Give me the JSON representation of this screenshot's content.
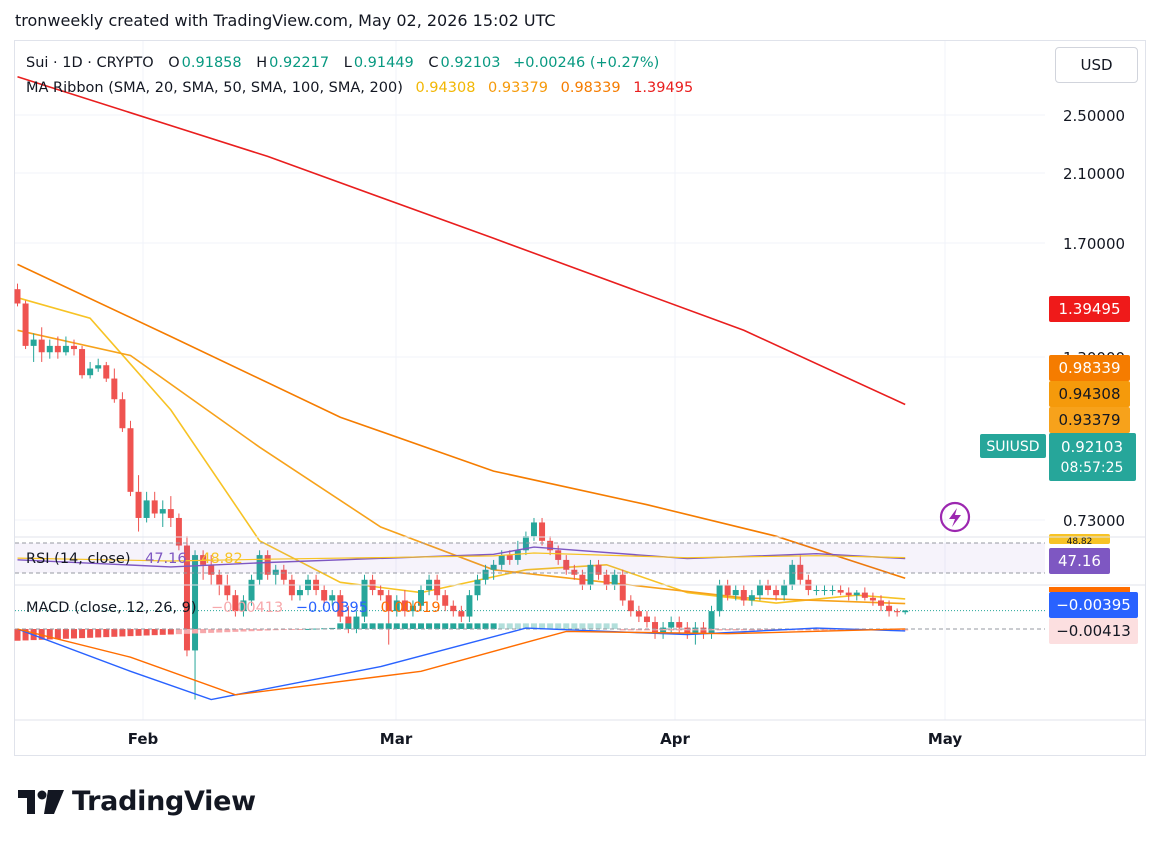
{
  "header": {
    "title": "tronweekly created with TradingView.com, May 02, 2026 15:02 UTC"
  },
  "currency_button": "USD",
  "symbol_legend": {
    "name": "Sui · 1D · CRYPTO",
    "o_label": "O",
    "o": "0.91858",
    "h_label": "H",
    "h": "0.92217",
    "l_label": "L",
    "l": "0.91449",
    "c_label": "C",
    "c": "0.92103",
    "change": "+0.00246 (+0.27%)"
  },
  "ma_legend": {
    "name": "MA Ribbon (SMA, 20, SMA, 50, SMA, 100, SMA, 200)",
    "v20": "0.94308",
    "v50": "0.93379",
    "v100": "0.98339",
    "v200": "1.39495"
  },
  "rsi_legend": {
    "name": "RSI (14, close)",
    "rsi": "47.16",
    "ma": "48.82"
  },
  "macd_legend": {
    "name": "MACD (close, 12, 26, 9)",
    "hist": "−0.00413",
    "macd": "−0.00395",
    "signal": "0.00019"
  },
  "axis_labels": {
    "price_ticks": [
      "2.50000",
      "2.10000",
      "1.70000",
      "1.30000",
      "0.73000"
    ],
    "ma200_tag": "1.39495",
    "ma100_tag": "0.98339",
    "ma20_tag": "0.94308",
    "ma50_tag": "0.93379",
    "symbol_tag": "SUIUSD",
    "price_tag": "0.92103",
    "countdown_tag": "08:57:25",
    "rsi_tag": "47.16",
    "rsi_hidden_tag": "48.82",
    "macd_tag": "−0.00395",
    "hist_tag": "−0.00413",
    "x_ticks": [
      "Feb",
      "Mar",
      "Apr",
      "May"
    ]
  },
  "brand": {
    "name": "TradingView"
  },
  "colors": {
    "up": "#26a69a",
    "down": "#ef5350",
    "ma20": "#f7c325",
    "ma50": "#f7a21b",
    "ma100": "#f57c00",
    "ma200": "#e91e1e",
    "rsi": "#7e57c2",
    "macd": "#2962ff",
    "signal": "#ff6d00"
  },
  "chart_data": {
    "type": "candlestick",
    "symbol": "SUIUSD",
    "interval": "1D",
    "price_scale": "log",
    "price_range": [
      0.7,
      2.7
    ],
    "x_range": [
      "2026-01-01",
      "2026-05-02"
    ],
    "candles": [
      [
        "2026-01-01",
        1.76,
        1.78,
        1.7,
        1.71
      ],
      [
        "2026-01-02",
        1.71,
        1.72,
        1.56,
        1.57
      ],
      [
        "2026-01-03",
        1.57,
        1.61,
        1.52,
        1.59
      ],
      [
        "2026-01-04",
        1.59,
        1.63,
        1.52,
        1.55
      ],
      [
        "2026-01-05",
        1.55,
        1.59,
        1.53,
        1.57
      ],
      [
        "2026-01-06",
        1.57,
        1.6,
        1.53,
        1.55
      ],
      [
        "2026-01-07",
        1.55,
        1.6,
        1.54,
        1.57
      ],
      [
        "2026-01-08",
        1.57,
        1.59,
        1.54,
        1.56
      ],
      [
        "2026-01-09",
        1.56,
        1.57,
        1.47,
        1.48
      ],
      [
        "2026-01-10",
        1.48,
        1.52,
        1.47,
        1.5
      ],
      [
        "2026-01-11",
        1.5,
        1.53,
        1.49,
        1.51
      ],
      [
        "2026-01-12",
        1.51,
        1.52,
        1.46,
        1.47
      ],
      [
        "2026-01-13",
        1.47,
        1.5,
        1.4,
        1.41
      ],
      [
        "2026-01-14",
        1.41,
        1.43,
        1.32,
        1.33
      ],
      [
        "2026-01-15",
        1.33,
        1.35,
        1.16,
        1.17
      ],
      [
        "2026-01-16",
        1.17,
        1.21,
        1.08,
        1.11
      ],
      [
        "2026-01-17",
        1.11,
        1.17,
        1.1,
        1.15
      ],
      [
        "2026-01-18",
        1.15,
        1.17,
        1.11,
        1.12
      ],
      [
        "2026-01-19",
        1.12,
        1.15,
        1.09,
        1.13
      ],
      [
        "2026-01-20",
        1.13,
        1.16,
        1.09,
        1.11
      ],
      [
        "2026-01-21",
        1.11,
        1.12,
        1.04,
        1.05
      ],
      [
        "2026-01-22",
        1.05,
        1.07,
        0.84,
        0.85
      ],
      [
        "2026-01-23",
        0.85,
        1.04,
        0.77,
        1.03
      ],
      [
        "2026-01-24",
        1.03,
        1.04,
        0.98,
        1.01
      ],
      [
        "2026-01-25",
        1.01,
        1.03,
        0.97,
        0.99
      ],
      [
        "2026-01-26",
        0.99,
        1.0,
        0.95,
        0.97
      ],
      [
        "2026-01-27",
        0.97,
        0.99,
        0.94,
        0.95
      ],
      [
        "2026-01-28",
        0.95,
        0.96,
        0.91,
        0.92
      ],
      [
        "2026-01-29",
        0.92,
        0.95,
        0.91,
        0.94
      ],
      [
        "2026-01-30",
        0.94,
        0.99,
        0.93,
        0.98
      ],
      [
        "2026-01-31",
        0.98,
        1.04,
        0.97,
        1.03
      ],
      [
        "2026-02-01",
        1.03,
        1.04,
        0.98,
        0.99
      ],
      [
        "2026-02-02",
        0.99,
        1.01,
        0.97,
        1.0
      ],
      [
        "2026-02-03",
        1.0,
        1.01,
        0.97,
        0.98
      ],
      [
        "2026-02-04",
        0.98,
        0.99,
        0.94,
        0.95
      ],
      [
        "2026-02-05",
        0.95,
        0.97,
        0.94,
        0.96
      ],
      [
        "2026-02-06",
        0.96,
        0.99,
        0.95,
        0.98
      ],
      [
        "2026-02-07",
        0.98,
        0.99,
        0.95,
        0.96
      ],
      [
        "2026-02-08",
        0.96,
        0.97,
        0.93,
        0.94
      ],
      [
        "2026-02-09",
        0.94,
        0.96,
        0.93,
        0.95
      ],
      [
        "2026-02-10",
        0.95,
        0.96,
        0.9,
        0.91
      ],
      [
        "2026-02-11",
        0.91,
        0.93,
        0.88,
        0.89
      ],
      [
        "2026-02-12",
        0.89,
        0.92,
        0.88,
        0.91
      ],
      [
        "2026-02-13",
        0.91,
        0.99,
        0.9,
        0.98
      ],
      [
        "2026-02-14",
        0.98,
        0.99,
        0.95,
        0.96
      ],
      [
        "2026-02-15",
        0.96,
        0.97,
        0.94,
        0.95
      ],
      [
        "2026-02-16",
        0.95,
        0.96,
        0.86,
        0.92
      ],
      [
        "2026-02-17",
        0.92,
        0.95,
        0.91,
        0.94
      ],
      [
        "2026-02-18",
        0.94,
        0.96,
        0.91,
        0.92
      ],
      [
        "2026-02-19",
        0.92,
        0.94,
        0.91,
        0.93
      ],
      [
        "2026-02-20",
        0.93,
        0.97,
        0.92,
        0.96
      ],
      [
        "2026-02-21",
        0.96,
        0.99,
        0.95,
        0.98
      ],
      [
        "2026-02-22",
        0.98,
        0.99,
        0.94,
        0.95
      ],
      [
        "2026-02-23",
        0.95,
        0.96,
        0.92,
        0.93
      ],
      [
        "2026-02-24",
        0.93,
        0.94,
        0.91,
        0.92
      ],
      [
        "2026-02-25",
        0.92,
        0.93,
        0.9,
        0.91
      ],
      [
        "2026-02-26",
        0.91,
        0.96,
        0.9,
        0.95
      ],
      [
        "2026-02-27",
        0.95,
        0.99,
        0.94,
        0.98
      ],
      [
        "2026-02-28",
        0.98,
        1.01,
        0.97,
        1.0
      ],
      [
        "2026-03-01",
        1.0,
        1.02,
        0.98,
        1.01
      ],
      [
        "2026-03-02",
        1.01,
        1.04,
        1.0,
        1.03
      ],
      [
        "2026-03-03",
        1.03,
        1.04,
        1.01,
        1.02
      ],
      [
        "2026-03-04",
        1.02,
        1.06,
        1.01,
        1.04
      ],
      [
        "2026-03-05",
        1.04,
        1.08,
        1.03,
        1.07
      ],
      [
        "2026-03-06",
        1.07,
        1.11,
        1.06,
        1.1
      ],
      [
        "2026-03-07",
        1.1,
        1.11,
        1.05,
        1.06
      ],
      [
        "2026-03-08",
        1.06,
        1.07,
        1.03,
        1.04
      ],
      [
        "2026-03-09",
        1.04,
        1.05,
        1.01,
        1.02
      ],
      [
        "2026-03-10",
        1.02,
        1.03,
        0.99,
        1.0
      ],
      [
        "2026-03-11",
        1.0,
        1.01,
        0.98,
        0.99
      ],
      [
        "2026-03-12",
        0.99,
        1.0,
        0.96,
        0.97
      ],
      [
        "2026-03-13",
        0.97,
        1.02,
        0.96,
        1.01
      ],
      [
        "2026-03-14",
        1.01,
        1.02,
        0.98,
        0.99
      ],
      [
        "2026-03-15",
        0.99,
        1.0,
        0.96,
        0.97
      ],
      [
        "2026-03-16",
        0.97,
        1.0,
        0.96,
        0.99
      ],
      [
        "2026-03-17",
        0.99,
        1.0,
        0.93,
        0.94
      ],
      [
        "2026-03-18",
        0.94,
        0.95,
        0.91,
        0.92
      ],
      [
        "2026-03-19",
        0.92,
        0.93,
        0.9,
        0.91
      ],
      [
        "2026-03-20",
        0.91,
        0.92,
        0.89,
        0.9
      ],
      [
        "2026-03-21",
        0.9,
        0.91,
        0.87,
        0.88
      ],
      [
        "2026-03-22",
        0.88,
        0.9,
        0.87,
        0.89
      ],
      [
        "2026-03-23",
        0.89,
        0.91,
        0.88,
        0.9
      ],
      [
        "2026-03-24",
        0.9,
        0.91,
        0.88,
        0.89
      ],
      [
        "2026-03-25",
        0.89,
        0.9,
        0.87,
        0.88
      ],
      [
        "2026-03-26",
        0.88,
        0.9,
        0.86,
        0.89
      ],
      [
        "2026-03-27",
        0.89,
        0.9,
        0.87,
        0.88
      ],
      [
        "2026-03-28",
        0.88,
        0.93,
        0.87,
        0.92
      ],
      [
        "2026-03-29",
        0.92,
        0.98,
        0.91,
        0.97
      ],
      [
        "2026-03-30",
        0.97,
        0.98,
        0.94,
        0.95
      ],
      [
        "2026-03-31",
        0.95,
        0.97,
        0.94,
        0.96
      ],
      [
        "2026-04-01",
        0.96,
        0.97,
        0.93,
        0.94
      ],
      [
        "2026-04-02",
        0.94,
        0.96,
        0.93,
        0.95
      ],
      [
        "2026-04-03",
        0.95,
        0.98,
        0.94,
        0.97
      ],
      [
        "2026-04-04",
        0.97,
        0.98,
        0.95,
        0.96
      ],
      [
        "2026-04-05",
        0.96,
        0.97,
        0.94,
        0.95
      ],
      [
        "2026-04-06",
        0.95,
        0.98,
        0.94,
        0.97
      ],
      [
        "2026-04-07",
        0.97,
        1.02,
        0.96,
        1.01
      ],
      [
        "2026-04-08",
        1.01,
        1.03,
        0.97,
        0.98
      ],
      [
        "2026-04-09",
        0.98,
        0.99,
        0.95,
        0.96
      ],
      [
        "2026-04-10",
        0.96,
        0.97,
        0.95,
        0.96
      ],
      [
        "2026-04-11",
        0.96,
        0.97,
        0.95,
        0.96
      ],
      [
        "2026-04-12",
        0.96,
        0.97,
        0.95,
        0.96
      ],
      [
        "2026-04-13",
        0.96,
        0.97,
        0.95,
        0.955
      ],
      [
        "2026-04-14",
        0.955,
        0.965,
        0.94,
        0.95
      ],
      [
        "2026-04-15",
        0.95,
        0.96,
        0.94,
        0.955
      ],
      [
        "2026-04-16",
        0.955,
        0.965,
        0.94,
        0.945
      ],
      [
        "2026-04-17",
        0.945,
        0.955,
        0.93,
        0.94
      ],
      [
        "2026-04-18",
        0.94,
        0.95,
        0.92,
        0.93
      ],
      [
        "2026-04-19",
        0.93,
        0.94,
        0.91,
        0.92
      ],
      [
        "2026-04-20",
        0.92,
        0.925,
        0.91,
        0.918
      ],
      [
        "2026-04-21",
        0.918,
        0.922,
        0.914,
        0.921
      ]
    ],
    "series": [
      {
        "name": "SMA 20",
        "x": [
          "2026-01-01",
          "2026-01-10",
          "2026-01-20",
          "2026-01-31",
          "2026-02-10",
          "2026-02-20",
          "2026-03-05",
          "2026-03-15",
          "2026-03-25",
          "2026-04-05",
          "2026-04-15",
          "2026-04-21"
        ],
        "values": [
          1.73,
          1.66,
          1.38,
          1.06,
          0.975,
          0.955,
          1.0,
          1.01,
          0.955,
          0.935,
          0.95,
          0.943
        ]
      },
      {
        "name": "SMA 50",
        "x": [
          "2026-01-01",
          "2026-01-15",
          "2026-01-31",
          "2026-02-15",
          "2026-03-01",
          "2026-03-15",
          "2026-04-01",
          "2026-04-21"
        ],
        "values": [
          1.62,
          1.54,
          1.28,
          1.09,
          1.0,
          0.975,
          0.945,
          0.934
        ]
      },
      {
        "name": "SMA 100",
        "x": [
          "2026-01-01",
          "2026-01-20",
          "2026-02-10",
          "2026-03-01",
          "2026-03-20",
          "2026-04-05",
          "2026-04-21"
        ],
        "values": [
          1.85,
          1.6,
          1.36,
          1.22,
          1.14,
          1.07,
          0.983
        ]
      },
      {
        "name": "SMA 200",
        "x": [
          "2026-01-01",
          "2026-02-01",
          "2026-03-01",
          "2026-04-01",
          "2026-04-21"
        ],
        "values": [
          2.7,
          2.3,
          1.95,
          1.62,
          1.395
        ]
      },
      {
        "name": "RSI (14, close)",
        "x": [
          "2026-01-01",
          "2026-01-20",
          "2026-02-01",
          "2026-03-01",
          "2026-03-06",
          "2026-03-25",
          "2026-04-10",
          "2026-04-21"
        ],
        "values": [
          45,
          32,
          40,
          55,
          68,
          47,
          56,
          47.16
        ]
      },
      {
        "name": "MACD",
        "x": [
          "2026-01-01",
          "2026-01-15",
          "2026-01-25",
          "2026-02-15",
          "2026-03-05",
          "2026-03-25",
          "2026-04-10",
          "2026-04-21"
        ],
        "values": [
          0,
          -0.09,
          -0.15,
          -0.08,
          0.002,
          -0.012,
          0.002,
          -0.00395
        ]
      },
      {
        "name": "Signal",
        "x": [
          "2026-01-01",
          "2026-01-15",
          "2026-01-28",
          "2026-02-20",
          "2026-03-10",
          "2026-03-30",
          "2026-04-21"
        ],
        "values": [
          0,
          -0.06,
          -0.14,
          -0.09,
          -0.005,
          -0.01,
          0.00019
        ]
      }
    ]
  }
}
